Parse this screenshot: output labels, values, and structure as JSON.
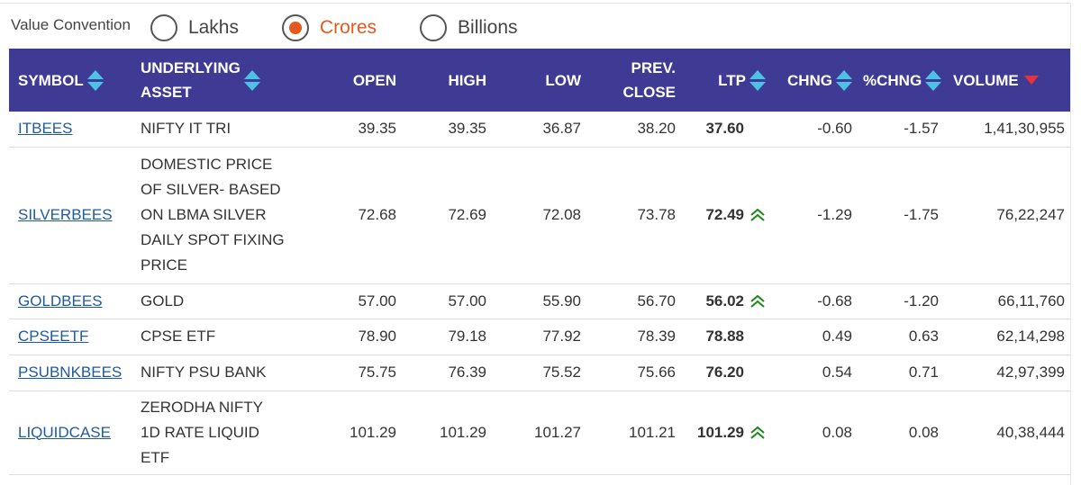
{
  "value_convention": {
    "label": "Value Convention",
    "options": [
      {
        "label": "Lakhs",
        "selected": false
      },
      {
        "label": "Crores",
        "selected": true
      },
      {
        "label": "Billions",
        "selected": false
      }
    ],
    "accent_color": "#e3581c"
  },
  "table": {
    "header_bg": "#3f3b94",
    "headers": {
      "symbol": "SYMBOL",
      "underlying_1": "UNDERLYING",
      "underlying_2": "ASSET",
      "open": "OPEN",
      "high": "HIGH",
      "low": "LOW",
      "prev_1": "PREV.",
      "prev_2": "CLOSE",
      "ltp": "LTP",
      "chng": "CHNG",
      "pchng": "%CHNG",
      "volume": "VOLUME"
    },
    "rows": [
      {
        "symbol": "ITBEES",
        "underlying": "NIFTY IT TRI",
        "open": "39.35",
        "high": "39.35",
        "low": "36.87",
        "prev_close": "38.20",
        "ltp": "37.60",
        "up_icon": false,
        "chng": "-0.60",
        "pchng": "-1.57",
        "volume": "1,41,30,955"
      },
      {
        "symbol": "SILVERBEES",
        "underlying_lines": [
          "DOMESTIC PRICE",
          "OF SILVER- BASED",
          "ON LBMA SILVER",
          "DAILY SPOT FIXING",
          "PRICE"
        ],
        "open": "72.68",
        "high": "72.69",
        "low": "72.08",
        "prev_close": "73.78",
        "ltp": "72.49",
        "up_icon": true,
        "chng": "-1.29",
        "pchng": "-1.75",
        "volume": "76,22,247"
      },
      {
        "symbol": "GOLDBEES",
        "underlying": "GOLD",
        "open": "57.00",
        "high": "57.00",
        "low": "55.90",
        "prev_close": "56.70",
        "ltp": "56.02",
        "up_icon": true,
        "chng": "-0.68",
        "pchng": "-1.20",
        "volume": "66,11,760"
      },
      {
        "symbol": "CPSEETF",
        "underlying": "CPSE ETF",
        "open": "78.90",
        "high": "79.18",
        "low": "77.92",
        "prev_close": "78.39",
        "ltp": "78.88",
        "up_icon": false,
        "chng": "0.49",
        "pchng": "0.63",
        "volume": "62,14,298"
      },
      {
        "symbol": "PSUBNKBEES",
        "underlying": "NIFTY PSU BANK",
        "open": "75.75",
        "high": "76.39",
        "low": "75.52",
        "prev_close": "75.66",
        "ltp": "76.20",
        "up_icon": false,
        "chng": "0.54",
        "pchng": "0.71",
        "volume": "42,97,399"
      },
      {
        "symbol": "LIQUIDCASE",
        "underlying_lines": [
          "ZERODHA NIFTY",
          "1D RATE LIQUID",
          "ETF"
        ],
        "open": "101.29",
        "high": "101.29",
        "low": "101.27",
        "prev_close": "101.21",
        "ltp": "101.29",
        "up_icon": true,
        "chng": "0.08",
        "pchng": "0.08",
        "volume": "40,38,444"
      }
    ],
    "colors": {
      "negative": "#d01818",
      "positive": "#1b8a1b",
      "link": "#1f5aa0",
      "sort_icon": "#4cc3e6",
      "sort_active": "#e8313c"
    }
  }
}
